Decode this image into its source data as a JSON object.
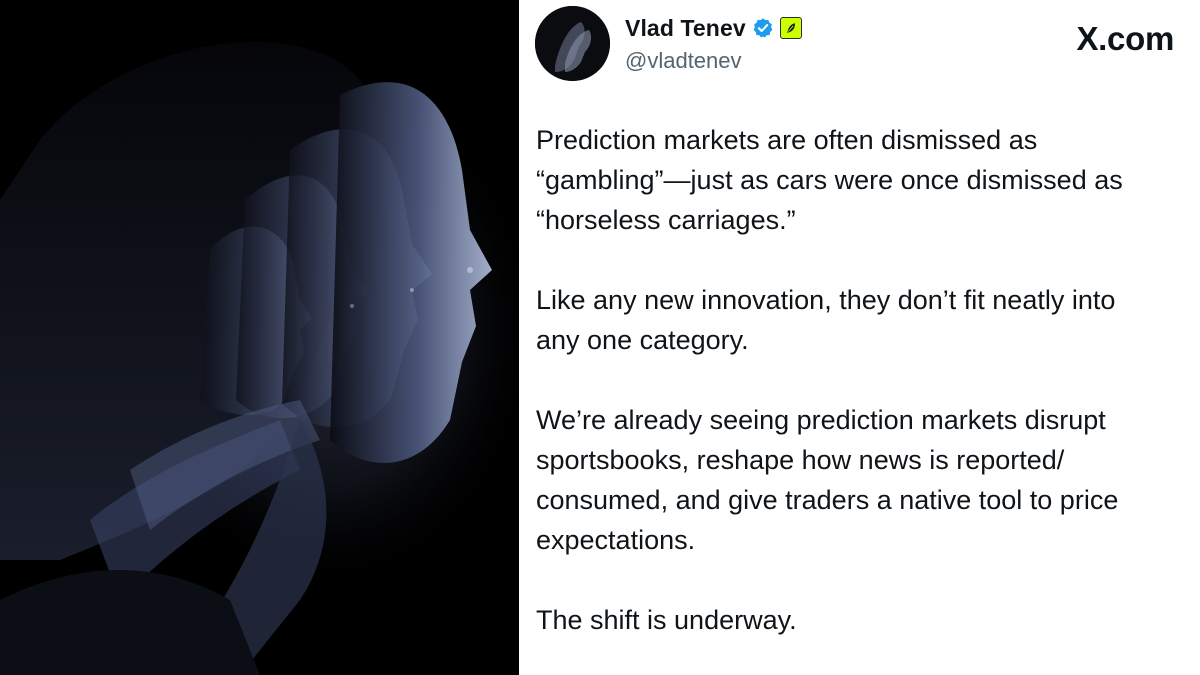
{
  "author": {
    "display_name": "Vlad Tenev",
    "handle": "@vladtenev",
    "verified": true,
    "badge_color": "#ccff00",
    "verified_color": "#1d9bf0"
  },
  "brand": "X.com",
  "tweet": {
    "paragraphs": [
      {
        "lines": [
          "Prediction markets are often dismissed as",
          "“gambling”—just as cars were once dismissed as",
          "“horseless carriages.”"
        ]
      },
      {
        "lines": [
          "Like any new innovation, they don’t fit neatly into",
          "any one category."
        ]
      },
      {
        "lines": [
          "We’re already seeing prediction markets disrupt",
          "sportsbooks, reshape how news is reported/",
          "consumed, and give traders a native tool to price",
          "expectations."
        ]
      },
      {
        "lines": [
          "The shift is underway."
        ]
      }
    ]
  },
  "icons": {
    "verified": "verified-check-icon",
    "affiliate": "affiliate-feather-icon"
  }
}
